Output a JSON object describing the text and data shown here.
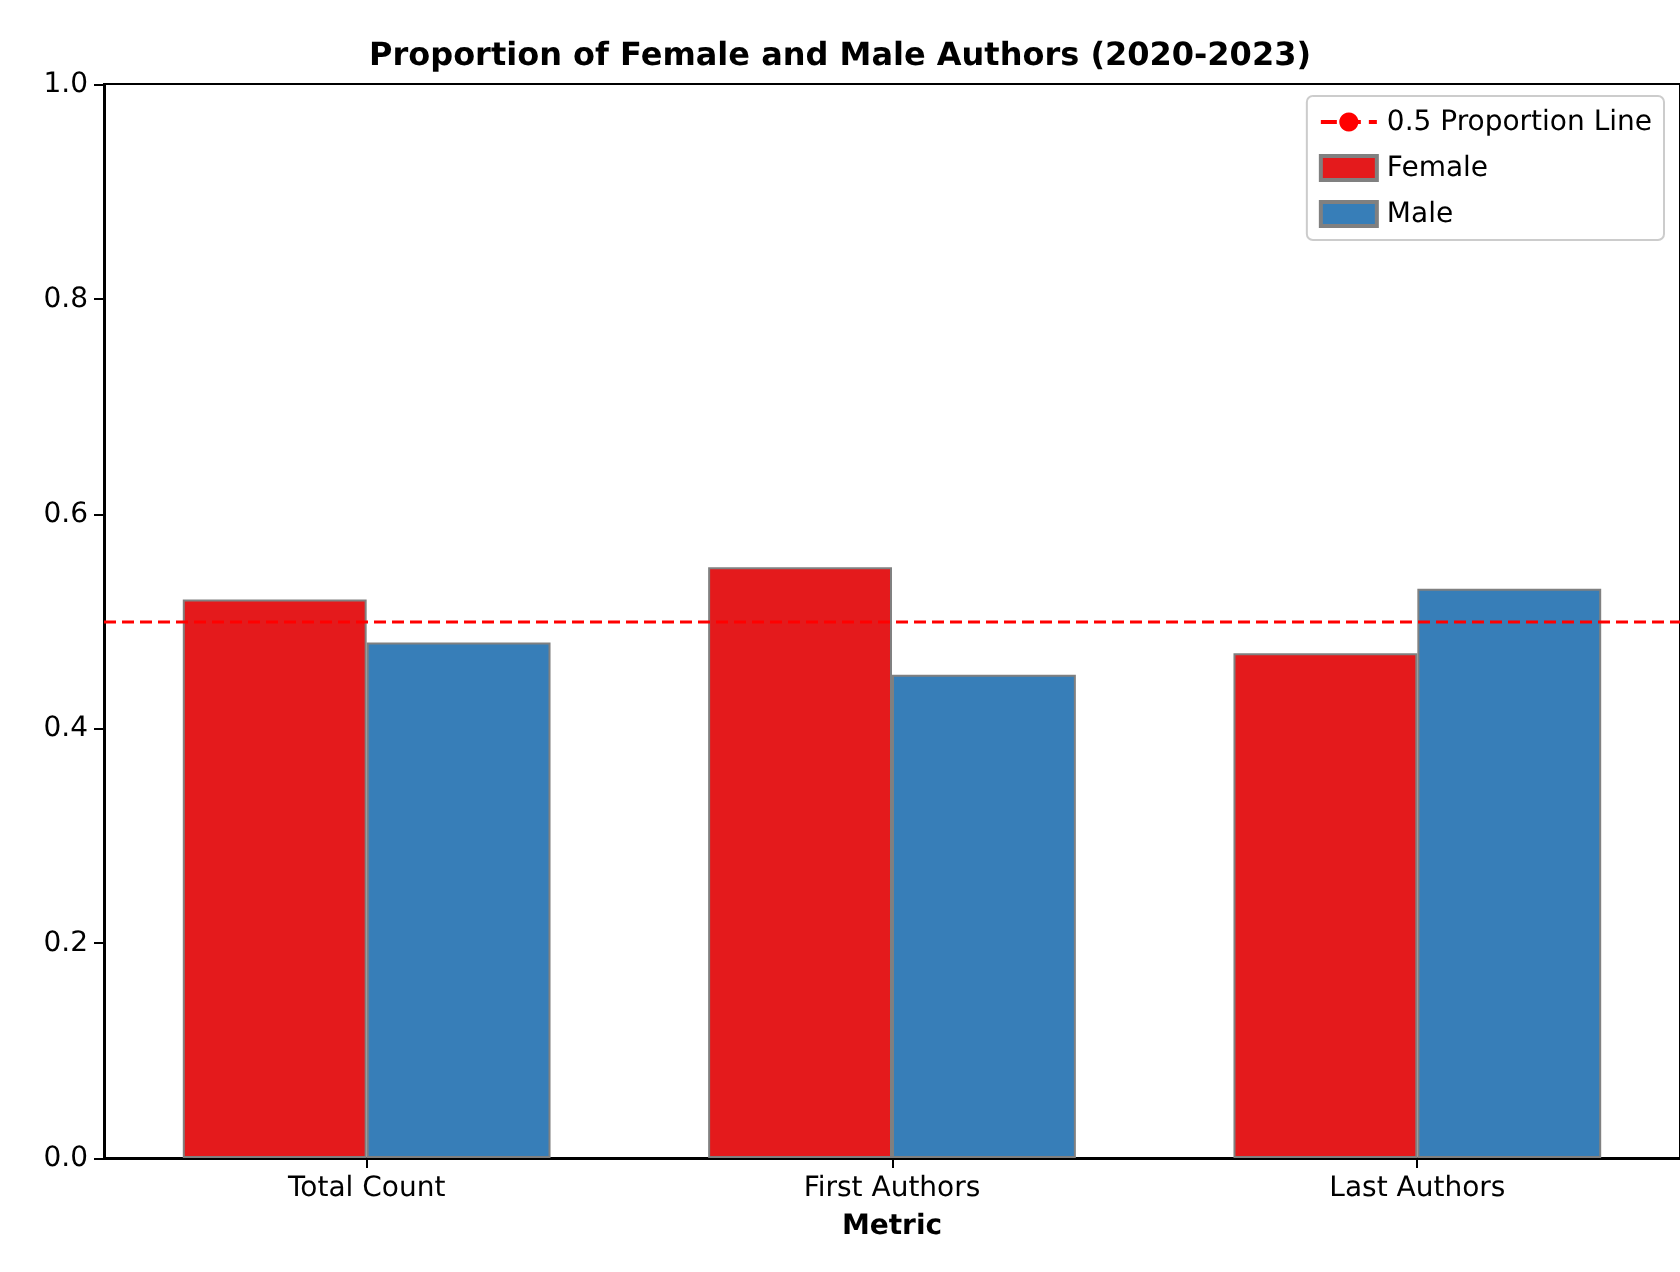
{
  "chart_data": {
    "type": "bar",
    "title": "Proportion of Female and Male Authors (2020-2023)",
    "xlabel": "Metric",
    "categories": [
      "Total Count",
      "First Authors",
      "Last Authors"
    ],
    "series": [
      {
        "name": "Female",
        "color": "#e41a1c",
        "values": [
          0.52,
          0.55,
          0.47
        ]
      },
      {
        "name": "Male",
        "color": "#377eb8",
        "values": [
          0.48,
          0.45,
          0.53
        ]
      }
    ],
    "ylim": [
      0,
      1
    ],
    "yticks": [
      {
        "value": 0,
        "label": "0.0"
      },
      0.2,
      0.4,
      0.6,
      0.8,
      {
        "value": 1,
        "label": "1.0"
      }
    ],
    "ref_lines": [
      {
        "axis": "y",
        "value": 0.5,
        "label": "0.5 Proportion Line",
        "color": "#ff0000",
        "line_style": "dashed"
      }
    ],
    "legend": "top right",
    "grid": false
  }
}
